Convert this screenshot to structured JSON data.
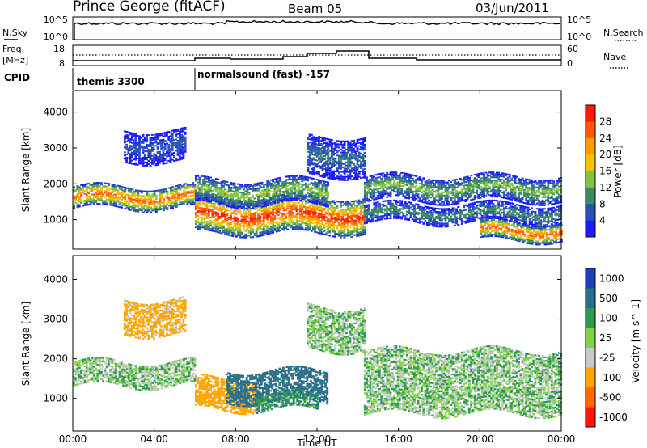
{
  "header": {
    "station": "Prince George (fitACF)",
    "beam": "Beam 05",
    "date": "03/Jun/2011"
  },
  "noise_panel": {
    "left_label": "N.Sky",
    "right_label": "N.Search",
    "left_ticks": [
      "10^5",
      "10^0"
    ],
    "right_ticks": [
      "10^5",
      "10^0"
    ]
  },
  "freq_panel": {
    "left_label_line1": "Freq.",
    "left_label_line2": "[MHz]",
    "right_label": "Nave",
    "left_ticks": [
      "18",
      "8"
    ],
    "right_ticks": [
      "60",
      "0"
    ]
  },
  "cpid_panel": {
    "label": "CPID",
    "segments": [
      {
        "start_hour": 0,
        "text": "themis 3300"
      },
      {
        "start_hour": 6,
        "text": "normalsound (fast) -157"
      }
    ]
  },
  "time_axis": {
    "label": "Time UT",
    "ticks": [
      "00:00",
      "04:00",
      "08:00",
      "12:00",
      "16:00",
      "20:00",
      "00:00"
    ],
    "range_hours": [
      0,
      24
    ]
  },
  "colors": {
    "power_scale": [
      "#1a1aff",
      "#2a50b8",
      "#3c8a64",
      "#84c241",
      "#f5c400",
      "#ff9a00",
      "#ff5a00",
      "#ff1a00"
    ],
    "velocity_scale": [
      "#1c3fc0",
      "#2a6f8a",
      "#2e9a50",
      "#7fd34a",
      "#c8c8c8",
      "#ffa500",
      "#ff6a00",
      "#ff1500"
    ],
    "noise_line": "#000000"
  },
  "chart_data": [
    {
      "type": "heatmap",
      "title": "Power",
      "ylabel": "Slant Range [km]",
      "xlabel": "",
      "ylim": [
        180,
        4600
      ],
      "yticks": [
        "1000",
        "2000",
        "3000",
        "4000"
      ],
      "colorbar_label": "Power [dB]",
      "colorbar_ticks": [
        "4",
        "8",
        "12",
        "16",
        "20",
        "24",
        "28"
      ],
      "colorbar_range": [
        0,
        30
      ],
      "bands": [
        {
          "t0": 0.0,
          "t1": 6.0,
          "r0": 1300,
          "r1": 1900,
          "peak": 25
        },
        {
          "t0": 2.5,
          "t1": 5.5,
          "r0": 2600,
          "r1": 3500,
          "peak": 6
        },
        {
          "t0": 6.0,
          "t1": 14.3,
          "r0": 600,
          "r1": 1600,
          "peak": 28
        },
        {
          "t0": 6.0,
          "t1": 12.5,
          "r0": 1400,
          "r1": 2100,
          "peak": 14
        },
        {
          "t0": 11.5,
          "t1": 14.3,
          "r0": 2200,
          "r1": 3300,
          "peak": 8
        },
        {
          "t0": 14.3,
          "t1": 24.0,
          "r0": 1500,
          "r1": 2200,
          "peak": 13
        },
        {
          "t0": 14.3,
          "t1": 24.0,
          "r0": 900,
          "r1": 1400,
          "peak": 10
        },
        {
          "t0": 20.0,
          "t1": 24.0,
          "r0": 400,
          "r1": 900,
          "peak": 26
        }
      ]
    },
    {
      "type": "heatmap",
      "title": "Velocity",
      "ylabel": "Slant Range [km]",
      "xlabel": "Time UT",
      "ylim": [
        180,
        4600
      ],
      "yticks": [
        "1000",
        "2000",
        "3000",
        "4000"
      ],
      "colorbar_label": "Velocity [m s^-1]",
      "colorbar_ticks": [
        "1000",
        "500",
        "100",
        "25",
        "-25",
        "-100",
        "-500",
        "-1000"
      ],
      "colorbar_range": [
        -1000,
        1000
      ],
      "bands": [
        {
          "t0": 0.0,
          "t1": 6.0,
          "r0": 1300,
          "r1": 1900,
          "vel": 0
        },
        {
          "t0": 2.5,
          "t1": 5.5,
          "r0": 2600,
          "r1": 3500,
          "vel": -150
        },
        {
          "t0": 6.0,
          "t1": 9.0,
          "r0": 700,
          "r1": 1500,
          "vel": -300
        },
        {
          "t0": 7.5,
          "t1": 12.5,
          "r0": 900,
          "r1": 1700,
          "vel": 400
        },
        {
          "t0": 9.0,
          "t1": 12.0,
          "r0": 700,
          "r1": 1100,
          "vel": 80
        },
        {
          "t0": 11.5,
          "t1": 14.3,
          "r0": 2200,
          "r1": 3300,
          "vel": 0
        },
        {
          "t0": 14.3,
          "t1": 24.0,
          "r0": 600,
          "r1": 2200,
          "vel": 0
        }
      ]
    }
  ]
}
